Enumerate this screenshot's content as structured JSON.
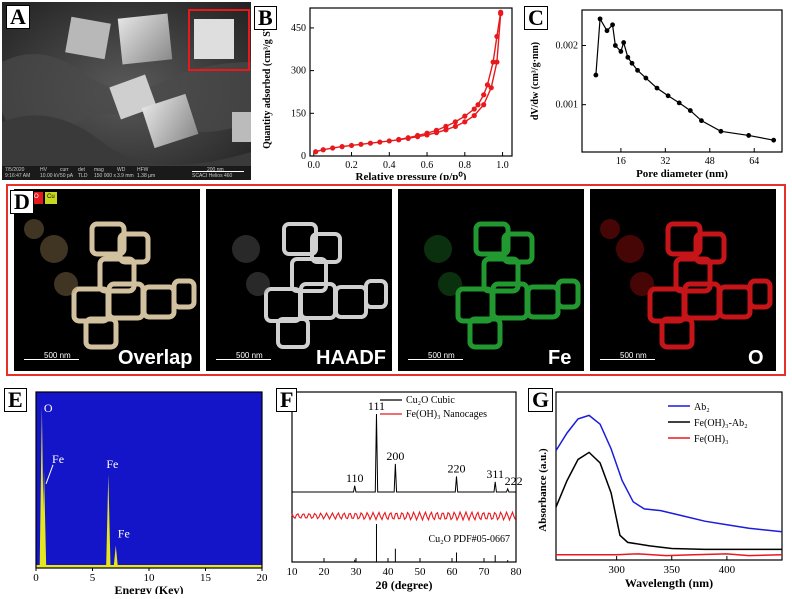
{
  "figure": {
    "panels": {
      "a": {
        "label": "A",
        "sem_info": [
          "7/5/2020",
          "HV",
          "curr",
          "det",
          "mag",
          "WD",
          "HFW",
          "200 nm",
          "9:16:47 AM",
          "10.00 kV",
          "50 pA",
          "TLD",
          "150 000 x",
          "3.9 mm",
          "1.38 µm",
          "SCACI Helios 460"
        ]
      },
      "b": {
        "label": "B"
      },
      "c": {
        "label": "C"
      },
      "d": {
        "label": "D",
        "legend_tags": [
          "Fe",
          "O",
          "Cu"
        ],
        "maps": [
          {
            "name": "Overlap",
            "scale": "500 nm"
          },
          {
            "name": "HAADF",
            "scale": "500 nm"
          },
          {
            "name": "Fe",
            "scale": "500 nm"
          },
          {
            "name": "O",
            "scale": "500 nm"
          }
        ]
      },
      "e": {
        "label": "E"
      },
      "f": {
        "label": "F"
      },
      "g": {
        "label": "G"
      }
    },
    "colors": {
      "red": "#e8191d",
      "blue": "#1c1cdb",
      "eds_bg": "#1414c8",
      "eds_peak": "#e6e61e",
      "green": "#2ecc40",
      "frame": "#e8302a"
    }
  },
  "chart_data": [
    {
      "panel": "B",
      "type": "line",
      "xlabel": "Relative pressure (p/p⁰)",
      "ylabel": "Quantity adsorbed (cm³/g STP)",
      "xlim": [
        -0.02,
        1.05
      ],
      "ylim": [
        0,
        520
      ],
      "xticks": [
        0.0,
        0.2,
        0.4,
        0.6,
        0.8,
        1.0
      ],
      "yticks": [
        0,
        150,
        300,
        450
      ],
      "series": [
        {
          "values": [
            [
              0.01,
              15
            ],
            [
              0.05,
              22
            ],
            [
              0.1,
              28
            ],
            [
              0.15,
              33
            ],
            [
              0.2,
              37
            ],
            [
              0.25,
              41
            ],
            [
              0.3,
              45
            ],
            [
              0.35,
              49
            ],
            [
              0.4,
              53
            ],
            [
              0.45,
              57
            ],
            [
              0.5,
              62
            ],
            [
              0.55,
              68
            ],
            [
              0.6,
              74
            ],
            [
              0.65,
              82
            ],
            [
              0.7,
              92
            ],
            [
              0.75,
              104
            ],
            [
              0.8,
              120
            ],
            [
              0.85,
              142
            ],
            [
              0.9,
              180
            ],
            [
              0.94,
              240
            ],
            [
              0.97,
              330
            ],
            [
              0.99,
              500
            ]
          ]
        },
        {
          "values": [
            [
              0.99,
              505
            ],
            [
              0.97,
              420
            ],
            [
              0.95,
              330
            ],
            [
              0.92,
              250
            ],
            [
              0.9,
              215
            ],
            [
              0.87,
              180
            ],
            [
              0.85,
              165
            ],
            [
              0.8,
              140
            ],
            [
              0.75,
              120
            ],
            [
              0.7,
              104
            ],
            [
              0.65,
              90
            ],
            [
              0.6,
              80
            ],
            [
              0.55,
              72
            ],
            [
              0.5,
              64
            ],
            [
              0.45,
              58
            ]
          ]
        }
      ]
    },
    {
      "panel": "C",
      "type": "line",
      "xlabel": "Pore diameter (nm)",
      "ylabel": "dV/dw (cm³/g·nm)",
      "xlim": [
        2,
        74
      ],
      "ylim": [
        0.0002,
        0.0026
      ],
      "xticks": [
        16,
        32,
        48,
        64
      ],
      "yticks": [
        0.001,
        0.002
      ],
      "ytick_labels": [
        "0.001",
        "0.002"
      ],
      "series": [
        {
          "values": [
            [
              7,
              0.0015
            ],
            [
              8.5,
              0.00245
            ],
            [
              11,
              0.00225
            ],
            [
              13,
              0.00235
            ],
            [
              14,
              0.002
            ],
            [
              16,
              0.0019
            ],
            [
              17,
              0.00205
            ],
            [
              18.5,
              0.0018
            ],
            [
              20,
              0.0017
            ],
            [
              22,
              0.00158
            ],
            [
              25,
              0.00145
            ],
            [
              29,
              0.00128
            ],
            [
              33,
              0.00115
            ],
            [
              37,
              0.00103
            ],
            [
              41,
              0.0009
            ],
            [
              45,
              0.00073
            ],
            [
              52,
              0.00055
            ],
            [
              62,
              0.00048
            ],
            [
              71,
              0.0004
            ]
          ]
        }
      ]
    },
    {
      "panel": "E",
      "type": "area",
      "xlabel": "Energy (Kev)",
      "xlim": [
        0,
        20
      ],
      "ylim": [
        0,
        100
      ],
      "xticks": [
        0,
        5,
        10,
        15,
        20
      ],
      "peaks": [
        {
          "label": "O",
          "x": 0.52,
          "height": 100
        },
        {
          "label": "Fe",
          "x": 0.71,
          "height": 60
        },
        {
          "label": "Fe",
          "x": 6.4,
          "height": 58
        },
        {
          "label": "Fe",
          "x": 7.06,
          "height": 14
        }
      ]
    },
    {
      "panel": "F",
      "type": "line",
      "xlabel": "2θ (degree)",
      "xlim": [
        10,
        80
      ],
      "xticks": [
        10,
        20,
        30,
        40,
        50,
        60,
        70,
        80
      ],
      "legend": [
        "Cu₂O Cubic",
        "Fe(OH)₃ Nanocages"
      ],
      "reference_label": "Cu₂O PDF#05-0667",
      "cubic_peaks": [
        {
          "label": "110",
          "x": 29.6,
          "height": 8
        },
        {
          "label": "111",
          "x": 36.4,
          "height": 100
        },
        {
          "label": "200",
          "x": 42.3,
          "height": 36
        },
        {
          "label": "220",
          "x": 61.4,
          "height": 20
        },
        {
          "label": "311",
          "x": 73.5,
          "height": 13
        },
        {
          "label": "222",
          "x": 77.4,
          "height": 4
        }
      ],
      "reference_peaks": [
        {
          "x": 29.6,
          "height": 6
        },
        {
          "x": 36.4,
          "height": 100
        },
        {
          "x": 42.3,
          "height": 35
        },
        {
          "x": 61.4,
          "height": 25
        },
        {
          "x": 73.5,
          "height": 18
        },
        {
          "x": 77.4,
          "height": 5
        }
      ]
    },
    {
      "panel": "G",
      "type": "line",
      "xlabel": "Wavelength (nm)",
      "ylabel": "Absorbance (a.u.)",
      "xlim": [
        245,
        450
      ],
      "xticks": [
        300,
        350,
        400
      ],
      "legend": [
        "Ab₂",
        "Fe(OH)₃-Ab₂",
        "Fe(OH)₃"
      ],
      "series": [
        {
          "name": "Ab₂",
          "values": [
            [
              245,
              0.62
            ],
            [
              255,
              0.72
            ],
            [
              265,
              0.8
            ],
            [
              275,
              0.82
            ],
            [
              285,
              0.77
            ],
            [
              295,
              0.63
            ],
            [
              305,
              0.45
            ],
            [
              315,
              0.33
            ],
            [
              325,
              0.29
            ],
            [
              340,
              0.28
            ],
            [
              360,
              0.25
            ],
            [
              380,
              0.22
            ],
            [
              400,
              0.2
            ],
            [
              420,
              0.18
            ],
            [
              450,
              0.16
            ]
          ]
        },
        {
          "name": "Fe(OH)₃-Ab₂",
          "values": [
            [
              245,
              0.3
            ],
            [
              255,
              0.45
            ],
            [
              265,
              0.57
            ],
            [
              275,
              0.61
            ],
            [
              285,
              0.55
            ],
            [
              295,
              0.38
            ],
            [
              303,
              0.14
            ],
            [
              310,
              0.1
            ],
            [
              330,
              0.08
            ],
            [
              350,
              0.065
            ],
            [
              380,
              0.06
            ],
            [
              410,
              0.06
            ],
            [
              450,
              0.06
            ]
          ]
        },
        {
          "name": "Fe(OH)₃",
          "values": [
            [
              245,
              0.03
            ],
            [
              270,
              0.03
            ],
            [
              300,
              0.03
            ],
            [
              320,
              0.035
            ],
            [
              345,
              0.025
            ],
            [
              370,
              0.03
            ],
            [
              400,
              0.035
            ],
            [
              420,
              0.025
            ],
            [
              450,
              0.03
            ]
          ]
        }
      ]
    }
  ]
}
